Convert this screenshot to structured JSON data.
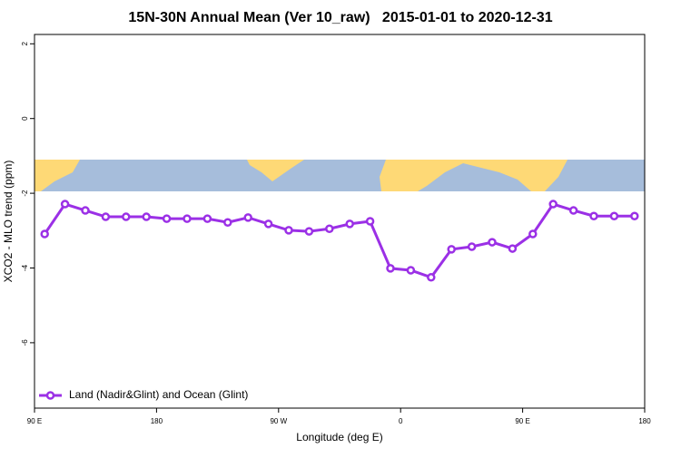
{
  "chart_data": {
    "type": "line",
    "title": "15N-30N Annual Mean (Ver 10_raw)   2015-01-01 to 2020-12-31",
    "x_label": "Longitude (deg E)",
    "y_label": "XCO2 - MLO trend (ppm)",
    "x": [
      97.5,
      112.5,
      127.5,
      142.5,
      157.5,
      172.5,
      187.5,
      202.5,
      217.5,
      232.5,
      247.5,
      262.5,
      277.5,
      292.5,
      307.5,
      322.5,
      337.5,
      352.5,
      367.5,
      382.5,
      397.5,
      412.5,
      427.5,
      442.5,
      457.5,
      472.5,
      487.5,
      502.5,
      517.5,
      532.5
    ],
    "series": [
      {
        "name": "Land (Nadir&Glint) and Ocean (Glint)",
        "color": "#9b30e6",
        "values": [
          -3.09,
          -2.29,
          -2.46,
          -2.63,
          -2.63,
          -2.63,
          -2.68,
          -2.68,
          -2.68,
          -2.78,
          -2.65,
          -2.82,
          -2.99,
          -3.02,
          -2.95,
          -2.82,
          -2.75,
          -4.01,
          -4.06,
          -4.25,
          -3.5,
          -3.43,
          -3.31,
          -3.48,
          -3.09,
          -2.29,
          -2.46,
          -2.61,
          -2.61,
          -2.61
        ]
      }
    ],
    "xlim": [
      90,
      540
    ],
    "xticks": [
      {
        "value": 90,
        "label": "90 E"
      },
      {
        "value": 180,
        "label": "180"
      },
      {
        "value": 270,
        "label": "90 W"
      },
      {
        "value": 360,
        "label": "0"
      },
      {
        "value": 450,
        "label": "90 E"
      },
      {
        "value": 540,
        "label": "180"
      }
    ],
    "ylim": [
      -7.75,
      2.25
    ],
    "yticks": [
      2,
      0,
      -2,
      -4,
      -6
    ],
    "legend": "lower left"
  }
}
